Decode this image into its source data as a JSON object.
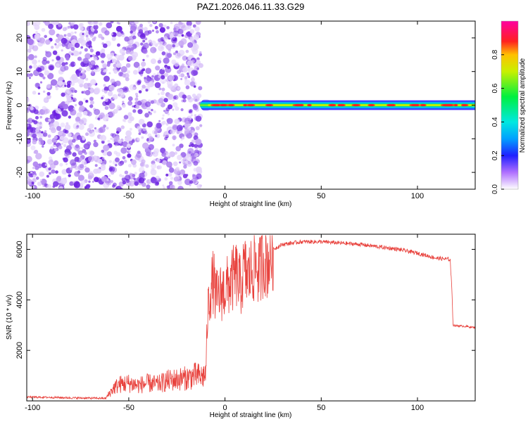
{
  "figure_title": "PAZ1.2026.046.11.33.G29",
  "colors": {
    "snr_line": "#e8413c",
    "frame": "#000000",
    "noise_palette": [
      "#e4d4fb",
      "#c9a9f5",
      "#a574ee",
      "#7e3de6",
      "#6a1fe0"
    ],
    "signal_core": "#ff2020",
    "signal_edges": [
      "#3a1fff",
      "#00c8ff",
      "#00e070",
      "#c8f000"
    ],
    "colormap_stops": [
      {
        "v": 0.0,
        "c": "#ffffff"
      },
      {
        "v": 0.1,
        "c": "#b070ff"
      },
      {
        "v": 0.2,
        "c": "#2020ff"
      },
      {
        "v": 0.3,
        "c": "#00a0ff"
      },
      {
        "v": 0.4,
        "c": "#00e8e0"
      },
      {
        "v": 0.55,
        "c": "#00f040"
      },
      {
        "v": 0.7,
        "c": "#c8f000"
      },
      {
        "v": 0.8,
        "c": "#ffc000"
      },
      {
        "v": 0.88,
        "c": "#ff2020"
      },
      {
        "v": 1.0,
        "c": "#ff00a0"
      }
    ]
  },
  "chart_data": [
    {
      "type": "heatmap",
      "title": "PAZ1.2026.046.11.33.G29",
      "xlabel": "Height of straight line (km)",
      "ylabel": "Frequency (Hz)",
      "xlim": [
        -103,
        130
      ],
      "ylim": [
        -25,
        25
      ],
      "xticks": [
        -100,
        -50,
        0,
        50,
        100
      ],
      "yticks": [
        -20,
        -10,
        0,
        10,
        20
      ],
      "noise_region_x": [
        -103,
        -11
      ],
      "signal_region_x": [
        -11,
        130
      ],
      "signal_frequency_hz": 0,
      "colorbar": {
        "label": "Normalized spectral amplitude",
        "range": [
          0,
          1
        ],
        "ticks": [
          0.0,
          0.2,
          0.4,
          0.6,
          0.8
        ],
        "tick_labels": [
          "0.0",
          "0.2",
          "0.4",
          "0.6",
          "0.8"
        ]
      }
    },
    {
      "type": "line",
      "xlabel": "Height of straight line (km)",
      "ylabel": "SNR (10 * v/v)",
      "xlim": [
        -103,
        130
      ],
      "ylim": [
        0,
        6600
      ],
      "xticks": [
        -100,
        -50,
        0,
        50,
        100
      ],
      "yticks": [
        2000,
        4000,
        6000
      ],
      "series": [
        {
          "name": "SNR",
          "x": [
            -103,
            -90,
            -80,
            -70,
            -62,
            -58,
            -55,
            -50,
            -45,
            -40,
            -35,
            -30,
            -25,
            -20,
            -15,
            -12,
            -10,
            -9,
            -8,
            -7,
            -6,
            -5,
            -4,
            -2,
            0,
            3,
            6,
            8,
            10,
            12,
            14,
            16,
            18,
            20,
            22,
            25,
            30,
            40,
            50,
            60,
            70,
            80,
            90,
            100,
            110,
            117,
            118,
            118.5,
            120,
            125,
            130
          ],
          "values": [
            150,
            140,
            120,
            110,
            100,
            500,
            650,
            700,
            620,
            700,
            650,
            800,
            850,
            900,
            1000,
            950,
            1100,
            3500,
            4200,
            4500,
            4800,
            4200,
            4100,
            4300,
            4400,
            4700,
            5000,
            4500,
            5200,
            4900,
            5200,
            5400,
            5100,
            5700,
            5500,
            6000,
            6200,
            6300,
            6300,
            6250,
            6200,
            6100,
            6000,
            5850,
            5650,
            5600,
            4200,
            3000,
            2980,
            2950,
            2900
          ]
        }
      ]
    }
  ]
}
